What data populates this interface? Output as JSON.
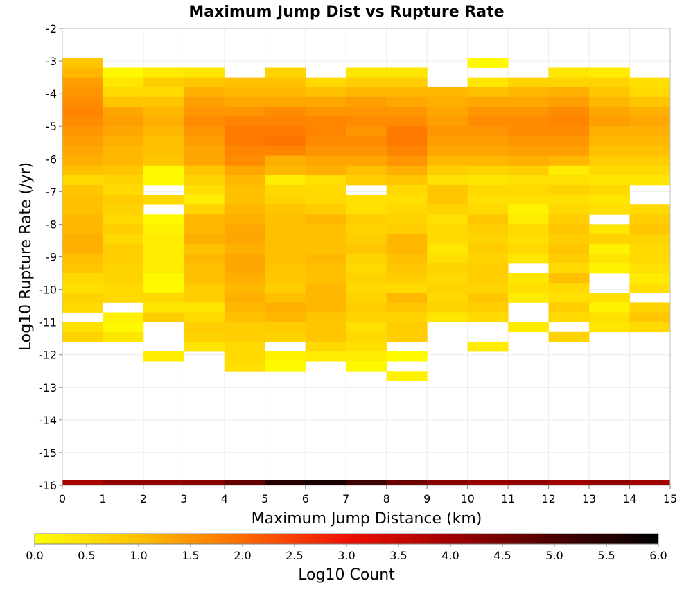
{
  "chart_data": {
    "type": "heatmap",
    "title": "Maximum Jump Dist vs Rupture Rate",
    "xlabel": "Maximum Jump Distance (km)",
    "ylabel": "Log10 Rupture Rate (/yr)",
    "xlim": [
      0,
      15
    ],
    "ylim": [
      -16,
      -2
    ],
    "x_ticks": [
      "0",
      "1",
      "2",
      "3",
      "4",
      "5",
      "6",
      "7",
      "8",
      "9",
      "10",
      "11",
      "12",
      "13",
      "14",
      "15"
    ],
    "y_ticks": [
      "-2",
      "-3",
      "-4",
      "-5",
      "-6",
      "-7",
      "-8",
      "-9",
      "-10",
      "-11",
      "-12",
      "-13",
      "-14",
      "-15",
      "-16"
    ],
    "bin_width_x": 1,
    "bin_height_y": 0.3,
    "x_bins": [
      0,
      1,
      2,
      3,
      4,
      5,
      6,
      7,
      8,
      9,
      10,
      11,
      12,
      13,
      14
    ],
    "y_bin_starts": [
      -3.2,
      -3.5,
      -3.8,
      -4.1,
      -4.4,
      -4.7,
      -5.0,
      -5.3,
      -5.6,
      -5.9,
      -6.2,
      -6.5,
      -6.8,
      -7.1,
      -7.4,
      -7.7,
      -8.0,
      -8.3,
      -8.6,
      -8.9,
      -9.2,
      -9.5,
      -9.8,
      -10.1,
      -10.4,
      -10.7,
      -11.0,
      -11.3,
      -11.6,
      -11.9,
      -12.2,
      -12.5,
      -12.8
    ],
    "z_values": [
      [
        0.9,
        0.0,
        0.0,
        0.0,
        0.0,
        0.0,
        0.0,
        0.0,
        0.0,
        0.0,
        0.1,
        0.0,
        0.0,
        0.0,
        0.0
      ],
      [
        1.1,
        0.1,
        0.3,
        0.4,
        0.0,
        0.7,
        0.0,
        0.4,
        0.4,
        0.0,
        0.0,
        0.0,
        0.4,
        0.3,
        0.0
      ],
      [
        1.4,
        0.4,
        0.8,
        0.9,
        1.0,
        1.0,
        0.6,
        0.8,
        0.8,
        0.0,
        0.4,
        0.7,
        0.7,
        0.7,
        0.5
      ],
      [
        1.5,
        0.6,
        0.6,
        1.2,
        1.1,
        1.1,
        1.0,
        1.1,
        1.1,
        1.1,
        1.0,
        1.1,
        1.2,
        0.9,
        0.6
      ],
      [
        1.6,
        0.9,
        0.9,
        1.4,
        1.3,
        1.3,
        1.3,
        1.4,
        1.3,
        1.2,
        1.3,
        1.3,
        1.4,
        1.1,
        0.9
      ],
      [
        1.7,
        1.3,
        1.1,
        1.5,
        1.5,
        1.6,
        1.5,
        1.5,
        1.5,
        1.3,
        1.5,
        1.5,
        1.6,
        1.3,
        1.2
      ],
      [
        1.6,
        1.4,
        1.2,
        1.6,
        1.7,
        1.7,
        1.7,
        1.6,
        1.6,
        1.4,
        1.6,
        1.6,
        1.7,
        1.4,
        1.3
      ],
      [
        1.5,
        1.3,
        1.1,
        1.5,
        1.8,
        1.8,
        1.7,
        1.5,
        1.8,
        1.5,
        1.5,
        1.6,
        1.6,
        1.2,
        1.2
      ],
      [
        1.4,
        1.2,
        1.0,
        1.4,
        1.8,
        1.9,
        1.6,
        1.6,
        1.8,
        1.4,
        1.4,
        1.5,
        1.5,
        1.1,
        1.1
      ],
      [
        1.3,
        1.1,
        1.0,
        1.3,
        1.7,
        1.7,
        1.5,
        1.5,
        1.7,
        1.3,
        1.3,
        1.4,
        1.4,
        1.0,
        1.0
      ],
      [
        1.2,
        1.1,
        0.9,
        1.3,
        1.6,
        1.2,
        1.3,
        1.3,
        1.5,
        1.1,
        1.1,
        1.2,
        1.1,
        0.8,
        0.8
      ],
      [
        1.0,
        0.9,
        0.1,
        0.9,
        1.3,
        1.1,
        1.2,
        1.0,
        1.2,
        0.8,
        0.7,
        0.8,
        0.3,
        0.6,
        0.6
      ],
      [
        0.6,
        0.7,
        0.1,
        0.7,
        1.1,
        0.3,
        0.5,
        0.8,
        0.9,
        0.5,
        0.4,
        0.5,
        0.5,
        0.4,
        0.4
      ],
      [
        0.9,
        0.6,
        0.0,
        0.5,
        1.0,
        0.6,
        0.6,
        0.0,
        0.6,
        0.9,
        0.6,
        0.6,
        0.7,
        0.6,
        0.0
      ],
      [
        1.0,
        0.8,
        0.6,
        0.3,
        1.0,
        0.7,
        0.6,
        0.5,
        0.5,
        0.9,
        0.5,
        0.5,
        0.5,
        0.4,
        0.0
      ],
      [
        1.0,
        0.7,
        0.0,
        0.7,
        1.1,
        0.9,
        0.8,
        0.5,
        0.6,
        0.7,
        0.6,
        0.2,
        0.6,
        0.5,
        0.6
      ],
      [
        1.1,
        0.6,
        0.1,
        1.1,
        1.2,
        1.0,
        1.1,
        0.8,
        0.7,
        0.5,
        0.9,
        0.3,
        0.8,
        0.0,
        0.8
      ],
      [
        1.1,
        0.8,
        0.2,
        1.1,
        1.3,
        1.0,
        1.0,
        0.7,
        0.8,
        0.6,
        0.8,
        0.6,
        0.9,
        0.4,
        0.9
      ],
      [
        1.2,
        0.6,
        0.3,
        1.2,
        1.3,
        1.0,
        1.0,
        0.8,
        1.1,
        0.6,
        0.7,
        0.5,
        0.8,
        0.7,
        0.7
      ],
      [
        1.2,
        0.8,
        0.3,
        1.0,
        1.2,
        1.0,
        1.0,
        0.9,
        1.1,
        0.4,
        0.8,
        0.6,
        0.9,
        0.2,
        0.6
      ],
      [
        1.0,
        0.8,
        0.3,
        1.1,
        1.3,
        1.0,
        1.1,
        0.7,
        1.0,
        0.5,
        0.7,
        0.4,
        0.8,
        0.4,
        0.6
      ],
      [
        0.9,
        0.7,
        0.3,
        1.0,
        1.3,
        0.9,
        1.0,
        0.6,
        0.9,
        0.7,
        0.8,
        0.0,
        0.6,
        0.2,
        0.5
      ],
      [
        0.6,
        0.7,
        0.1,
        1.0,
        1.2,
        0.9,
        1.0,
        0.7,
        0.8,
        0.6,
        0.8,
        0.4,
        1.0,
        0.0,
        0.3
      ],
      [
        0.5,
        0.6,
        0.1,
        0.8,
        1.1,
        0.8,
        1.1,
        0.6,
        0.6,
        0.7,
        0.7,
        0.5,
        0.6,
        0.0,
        0.5
      ],
      [
        0.7,
        0.6,
        0.6,
        0.8,
        1.2,
        1.0,
        1.1,
        0.7,
        1.1,
        0.6,
        0.9,
        0.3,
        0.5,
        0.5,
        0.3
      ],
      [
        0.6,
        0.0,
        0.4,
        0.4,
        1.1,
        1.2,
        1.1,
        0.8,
        0.9,
        0.7,
        0.8,
        0.0,
        0.8,
        0.2,
        0.7
      ],
      [
        0.0,
        0.2,
        0.8,
        0.6,
        1.0,
        1.1,
        0.9,
        0.7,
        0.7,
        0.4,
        0.6,
        0.0,
        0.6,
        0.5,
        0.9
      ],
      [
        0.5,
        0.1,
        0.0,
        0.8,
        0.8,
        0.8,
        0.9,
        0.5,
        0.8,
        0.0,
        0.0,
        0.3,
        0.0,
        0.4,
        0.6
      ],
      [
        0.7,
        0.4,
        0.0,
        0.7,
        0.8,
        0.7,
        0.9,
        0.6,
        0.8,
        0.0,
        0.0,
        0.0,
        0.7,
        0.0,
        0.0
      ],
      [
        0.0,
        0.0,
        0.0,
        0.4,
        0.6,
        0.0,
        0.6,
        0.5,
        0.0,
        0.0,
        0.3,
        0.0,
        0.0,
        0.0,
        0.0
      ],
      [
        0.0,
        0.0,
        0.3,
        0.0,
        0.6,
        0.2,
        0.3,
        0.3,
        0.1,
        0.0,
        0.0,
        0.0,
        0.0,
        0.0,
        0.0
      ],
      [
        0.0,
        0.0,
        0.0,
        0.0,
        0.5,
        0.1,
        0.0,
        0.1,
        0.0,
        0.0,
        0.0,
        0.0,
        0.0,
        0.0,
        0.0
      ],
      [
        0.0,
        0.0,
        0.0,
        0.0,
        0.0,
        0.0,
        0.0,
        0.0,
        0.2,
        0.0,
        0.0,
        0.0,
        0.0,
        0.0,
        0.0
      ]
    ],
    "present": [
      [
        1,
        0,
        0,
        0,
        0,
        0,
        0,
        0,
        0,
        0,
        1,
        0,
        0,
        0,
        0
      ],
      [
        1,
        1,
        1,
        1,
        0,
        1,
        0,
        1,
        1,
        0,
        0,
        0,
        1,
        1,
        0
      ],
      [
        1,
        1,
        1,
        1,
        1,
        1,
        1,
        1,
        1,
        0,
        1,
        1,
        1,
        1,
        1
      ],
      [
        1,
        1,
        1,
        1,
        1,
        1,
        1,
        1,
        1,
        1,
        1,
        1,
        1,
        1,
        1
      ],
      [
        1,
        1,
        1,
        1,
        1,
        1,
        1,
        1,
        1,
        1,
        1,
        1,
        1,
        1,
        1
      ],
      [
        1,
        1,
        1,
        1,
        1,
        1,
        1,
        1,
        1,
        1,
        1,
        1,
        1,
        1,
        1
      ],
      [
        1,
        1,
        1,
        1,
        1,
        1,
        1,
        1,
        1,
        1,
        1,
        1,
        1,
        1,
        1
      ],
      [
        1,
        1,
        1,
        1,
        1,
        1,
        1,
        1,
        1,
        1,
        1,
        1,
        1,
        1,
        1
      ],
      [
        1,
        1,
        1,
        1,
        1,
        1,
        1,
        1,
        1,
        1,
        1,
        1,
        1,
        1,
        1
      ],
      [
        1,
        1,
        1,
        1,
        1,
        1,
        1,
        1,
        1,
        1,
        1,
        1,
        1,
        1,
        1
      ],
      [
        1,
        1,
        1,
        1,
        1,
        1,
        1,
        1,
        1,
        1,
        1,
        1,
        1,
        1,
        1
      ],
      [
        1,
        1,
        1,
        1,
        1,
        1,
        1,
        1,
        1,
        1,
        1,
        1,
        1,
        1,
        1
      ],
      [
        1,
        1,
        1,
        1,
        1,
        1,
        1,
        1,
        1,
        1,
        1,
        1,
        1,
        1,
        1
      ],
      [
        1,
        1,
        0,
        1,
        1,
        1,
        1,
        0,
        1,
        1,
        1,
        1,
        1,
        1,
        0
      ],
      [
        1,
        1,
        1,
        1,
        1,
        1,
        1,
        1,
        1,
        1,
        1,
        1,
        1,
        1,
        0
      ],
      [
        1,
        1,
        0,
        1,
        1,
        1,
        1,
        1,
        1,
        1,
        1,
        1,
        1,
        1,
        1
      ],
      [
        1,
        1,
        1,
        1,
        1,
        1,
        1,
        1,
        1,
        1,
        1,
        1,
        1,
        0,
        1
      ],
      [
        1,
        1,
        1,
        1,
        1,
        1,
        1,
        1,
        1,
        1,
        1,
        1,
        1,
        1,
        1
      ],
      [
        1,
        1,
        1,
        1,
        1,
        1,
        1,
        1,
        1,
        1,
        1,
        1,
        1,
        1,
        1
      ],
      [
        1,
        1,
        1,
        1,
        1,
        1,
        1,
        1,
        1,
        1,
        1,
        1,
        1,
        1,
        1
      ],
      [
        1,
        1,
        1,
        1,
        1,
        1,
        1,
        1,
        1,
        1,
        1,
        1,
        1,
        1,
        1
      ],
      [
        1,
        1,
        1,
        1,
        1,
        1,
        1,
        1,
        1,
        1,
        1,
        0,
        1,
        1,
        1
      ],
      [
        1,
        1,
        1,
        1,
        1,
        1,
        1,
        1,
        1,
        1,
        1,
        1,
        1,
        0,
        1
      ],
      [
        1,
        1,
        1,
        1,
        1,
        1,
        1,
        1,
        1,
        1,
        1,
        1,
        1,
        0,
        1
      ],
      [
        1,
        1,
        1,
        1,
        1,
        1,
        1,
        1,
        1,
        1,
        1,
        1,
        1,
        1,
        0
      ],
      [
        1,
        0,
        1,
        1,
        1,
        1,
        1,
        1,
        1,
        1,
        1,
        0,
        1,
        1,
        1
      ],
      [
        0,
        1,
        1,
        1,
        1,
        1,
        1,
        1,
        1,
        1,
        1,
        0,
        1,
        1,
        1
      ],
      [
        1,
        1,
        0,
        1,
        1,
        1,
        1,
        1,
        1,
        0,
        0,
        1,
        0,
        1,
        1
      ],
      [
        1,
        1,
        0,
        1,
        1,
        1,
        1,
        1,
        1,
        0,
        0,
        0,
        1,
        0,
        0
      ],
      [
        0,
        0,
        0,
        1,
        1,
        0,
        1,
        1,
        0,
        0,
        1,
        0,
        0,
        0,
        0
      ],
      [
        0,
        0,
        1,
        0,
        1,
        1,
        1,
        1,
        1,
        0,
        0,
        0,
        0,
        0,
        0
      ],
      [
        0,
        0,
        0,
        0,
        1,
        1,
        0,
        1,
        0,
        0,
        0,
        0,
        0,
        0,
        0
      ],
      [
        0,
        0,
        0,
        0,
        0,
        0,
        0,
        0,
        1,
        0,
        0,
        0,
        0,
        0,
        0
      ]
    ],
    "baseline_band": {
      "y_start": -16.0,
      "y_end": -15.85,
      "z_values": [
        3.9,
        4.2,
        4.2,
        4.3,
        4.7,
        5.5,
        5.7,
        5.2,
        4.6,
        4.3,
        4.1,
        4.2,
        4.0,
        4.2,
        4.0
      ]
    },
    "colorbar": {
      "label": "Log10 Count",
      "range": [
        0.0,
        6.0
      ],
      "ticks": [
        "0.0",
        "0.5",
        "1.0",
        "1.5",
        "2.0",
        "2.5",
        "3.0",
        "3.5",
        "4.0",
        "4.5",
        "5.0",
        "5.5",
        "6.0"
      ],
      "colors": [
        {
          "z": 0.0,
          "color": "#ffff00"
        },
        {
          "z": 1.0,
          "color": "#ffc000"
        },
        {
          "z": 2.0,
          "color": "#ff6a00"
        },
        {
          "z": 3.0,
          "color": "#ee1100"
        },
        {
          "z": 4.0,
          "color": "#a00000"
        },
        {
          "z": 5.0,
          "color": "#4a0000"
        },
        {
          "z": 6.0,
          "color": "#000000"
        }
      ]
    },
    "grid": true
  }
}
